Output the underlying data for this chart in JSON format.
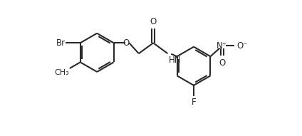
{
  "bg_color": "#ffffff",
  "line_color": "#2a2a2a",
  "line_width": 1.5,
  "font_size": 8.5,
  "figsize": [
    4.24,
    1.91
  ],
  "dpi": 100,
  "xlim": [
    0,
    10.0
  ],
  "ylim": [
    -2.5,
    4.5
  ]
}
